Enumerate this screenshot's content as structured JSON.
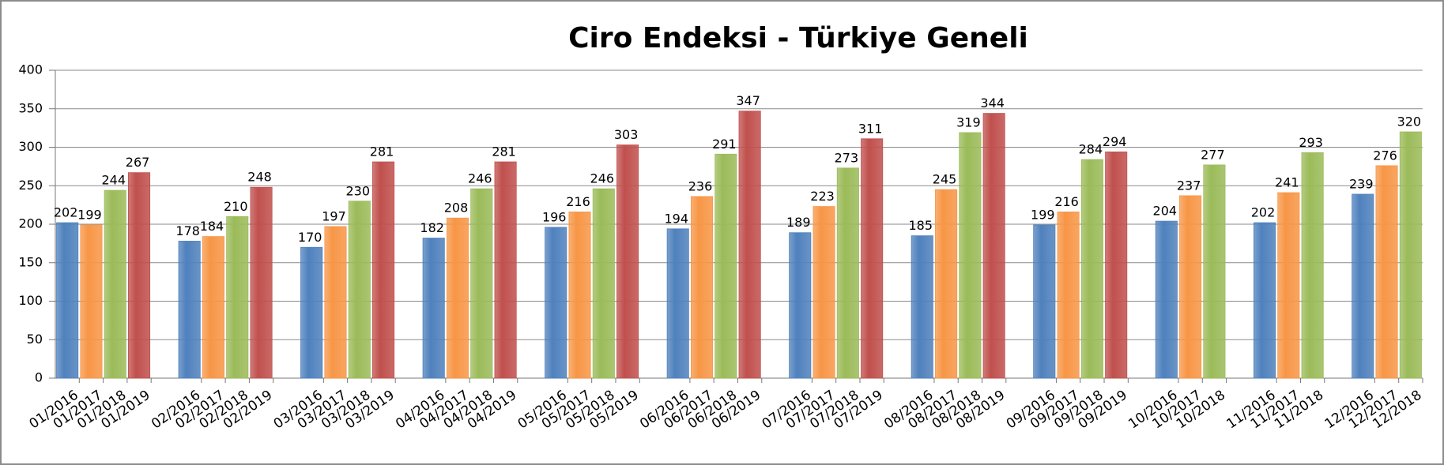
{
  "chart_data": {
    "type": "bar",
    "title": "Ciro Endeksi - Türkiye Geneli",
    "categories": [
      "01/2016",
      "01/2017",
      "01/2018",
      "01/2019",
      "02/2016",
      "02/2017",
      "02/2018",
      "02/2019",
      "03/2016",
      "03/2017",
      "03/2018",
      "03/2019",
      "04/2016",
      "04/2017",
      "04/2018",
      "04/2019",
      "05/2016",
      "05/2017",
      "05/2018",
      "05/2019",
      "06/2016",
      "06/2017",
      "06/2018",
      "06/2019",
      "07/2016",
      "07/2017",
      "07/2018",
      "07/2019",
      "08/2016",
      "08/2017",
      "08/2018",
      "08/2019",
      "09/2016",
      "09/2017",
      "09/2018",
      "09/2019",
      "10/2016",
      "10/2017",
      "10/2018",
      "11/2016",
      "11/2017",
      "11/2018",
      "12/2016",
      "12/2017",
      "12/2018"
    ],
    "values": [
      202,
      199,
      244,
      267,
      178,
      184,
      210,
      248,
      170,
      197,
      230,
      281,
      182,
      208,
      246,
      281,
      196,
      216,
      246,
      303,
      194,
      236,
      291,
      347,
      189,
      223,
      273,
      311,
      185,
      245,
      319,
      344,
      199,
      216,
      284,
      294,
      204,
      237,
      277,
      202,
      241,
      293,
      239,
      276,
      320
    ],
    "colors": [
      "#4f81bd",
      "#f79646",
      "#9bbb59",
      "#c0504d"
    ],
    "ylim": [
      0,
      400
    ],
    "yticks": [
      0,
      50,
      100,
      150,
      200,
      250,
      300,
      350,
      400
    ],
    "grid": true
  }
}
